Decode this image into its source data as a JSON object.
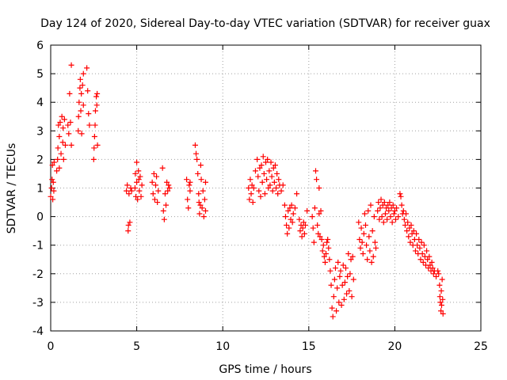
{
  "chart_data": {
    "type": "scatter",
    "title": "Day 124 of 2020, Sidereal Day-to-day VTEC variation (SDTVAR) for receiver guax",
    "xlabel": "GPS time / hours",
    "ylabel": "SDTVAR / TECUs",
    "xlim": [
      0,
      25
    ],
    "ylim": [
      -4,
      6
    ],
    "xticks": [
      "0",
      "5",
      "10",
      "15",
      "20",
      "25"
    ],
    "yticks": [
      "-4",
      "-3",
      "-2",
      "-1",
      "0",
      "1",
      "2",
      "3",
      "4",
      "5",
      "6"
    ],
    "grid": true,
    "marker": "plus",
    "color": "#ff0000",
    "points": [
      [
        0.0,
        0.7
      ],
      [
        0.05,
        1.0
      ],
      [
        0.08,
        1.3
      ],
      [
        0.1,
        1.8
      ],
      [
        0.12,
        0.6
      ],
      [
        0.15,
        1.2
      ],
      [
        0.18,
        0.9
      ],
      [
        0.2,
        1.9
      ],
      [
        0.35,
        1.6
      ],
      [
        0.4,
        2.0
      ],
      [
        0.42,
        2.4
      ],
      [
        0.45,
        3.2
      ],
      [
        0.5,
        2.8
      ],
      [
        0.5,
        1.7
      ],
      [
        0.55,
        3.3
      ],
      [
        0.6,
        2.2
      ],
      [
        0.65,
        3.5
      ],
      [
        0.7,
        2.6
      ],
      [
        0.72,
        3.1
      ],
      [
        0.75,
        2.0
      ],
      [
        0.8,
        3.4
      ],
      [
        0.85,
        2.5
      ],
      [
        1.0,
        3.2
      ],
      [
        1.05,
        2.9
      ],
      [
        1.1,
        4.3
      ],
      [
        1.15,
        3.3
      ],
      [
        1.2,
        5.3
      ],
      [
        1.2,
        2.5
      ],
      [
        1.6,
        3.0
      ],
      [
        1.62,
        3.5
      ],
      [
        1.65,
        4.0
      ],
      [
        1.7,
        4.5
      ],
      [
        1.72,
        4.8
      ],
      [
        1.75,
        3.7
      ],
      [
        1.78,
        4.3
      ],
      [
        1.8,
        2.9
      ],
      [
        1.85,
        4.6
      ],
      [
        1.9,
        3.9
      ],
      [
        1.9,
        5.0
      ],
      [
        2.1,
        5.2
      ],
      [
        2.15,
        4.4
      ],
      [
        2.2,
        3.6
      ],
      [
        2.25,
        3.2
      ],
      [
        2.5,
        2.0
      ],
      [
        2.52,
        2.4
      ],
      [
        2.55,
        2.8
      ],
      [
        2.58,
        3.2
      ],
      [
        2.6,
        3.7
      ],
      [
        2.65,
        4.2
      ],
      [
        2.68,
        3.9
      ],
      [
        2.7,
        4.3
      ],
      [
        2.72,
        2.5
      ],
      [
        4.4,
        0.9
      ],
      [
        4.45,
        1.1
      ],
      [
        4.5,
        -0.5
      ],
      [
        4.52,
        -0.3
      ],
      [
        4.55,
        0.8
      ],
      [
        4.6,
        -0.2
      ],
      [
        4.65,
        1.0
      ],
      [
        4.7,
        0.9
      ],
      [
        4.9,
        1.0
      ],
      [
        4.92,
        1.5
      ],
      [
        4.95,
        0.7
      ],
      [
        5.0,
        1.9
      ],
      [
        5.0,
        1.2
      ],
      [
        5.05,
        0.6
      ],
      [
        5.1,
        1.6
      ],
      [
        5.12,
        1.3
      ],
      [
        5.15,
        0.9
      ],
      [
        5.2,
        1.4
      ],
      [
        5.25,
        0.7
      ],
      [
        5.3,
        1.1
      ],
      [
        5.9,
        1.2
      ],
      [
        5.95,
        0.8
      ],
      [
        6.0,
        1.5
      ],
      [
        6.05,
        0.6
      ],
      [
        6.1,
        1.1
      ],
      [
        6.15,
        1.4
      ],
      [
        6.2,
        0.5
      ],
      [
        6.25,
        0.9
      ],
      [
        6.5,
        1.7
      ],
      [
        6.55,
        0.2
      ],
      [
        6.6,
        -0.1
      ],
      [
        6.65,
        0.8
      ],
      [
        6.7,
        0.4
      ],
      [
        6.75,
        1.2
      ],
      [
        6.8,
        0.9
      ],
      [
        6.85,
        1.1
      ],
      [
        6.9,
        1.0
      ],
      [
        7.9,
        1.3
      ],
      [
        7.95,
        0.6
      ],
      [
        8.0,
        0.3
      ],
      [
        8.05,
        1.1
      ],
      [
        8.1,
        0.9
      ],
      [
        8.1,
        1.2
      ],
      [
        8.4,
        2.5
      ],
      [
        8.45,
        2.2
      ],
      [
        8.5,
        2.0
      ],
      [
        8.55,
        1.5
      ],
      [
        8.6,
        0.8
      ],
      [
        8.62,
        0.5
      ],
      [
        8.65,
        0.1
      ],
      [
        8.7,
        0.4
      ],
      [
        8.72,
        1.8
      ],
      [
        8.75,
        1.3
      ],
      [
        8.8,
        0.3
      ],
      [
        8.85,
        0.9
      ],
      [
        8.9,
        0.0
      ],
      [
        8.95,
        0.6
      ],
      [
        9.0,
        1.2
      ],
      [
        9.0,
        0.2
      ],
      [
        11.5,
        1.0
      ],
      [
        11.55,
        0.6
      ],
      [
        11.6,
        1.3
      ],
      [
        11.65,
        0.8
      ],
      [
        11.7,
        1.1
      ],
      [
        11.75,
        0.5
      ],
      [
        11.8,
        1.0
      ],
      [
        11.9,
        1.6
      ],
      [
        12.0,
        2.0
      ],
      [
        12.05,
        1.4
      ],
      [
        12.1,
        0.9
      ],
      [
        12.15,
        1.7
      ],
      [
        12.2,
        0.7
      ],
      [
        12.25,
        1.8
      ],
      [
        12.3,
        1.2
      ],
      [
        12.35,
        2.1
      ],
      [
        12.4,
        1.5
      ],
      [
        12.45,
        0.8
      ],
      [
        12.5,
        1.9
      ],
      [
        12.55,
        1.3
      ],
      [
        12.6,
        2.0
      ],
      [
        12.65,
        1.0
      ],
      [
        12.7,
        1.6
      ],
      [
        12.75,
        1.1
      ],
      [
        12.8,
        1.9
      ],
      [
        12.85,
        1.4
      ],
      [
        12.9,
        0.9
      ],
      [
        12.95,
        1.7
      ],
      [
        13.0,
        1.2
      ],
      [
        13.05,
        1.8
      ],
      [
        13.1,
        1.0
      ],
      [
        13.15,
        1.5
      ],
      [
        13.2,
        0.8
      ],
      [
        13.25,
        1.3
      ],
      [
        13.3,
        1.1
      ],
      [
        13.4,
        0.9
      ],
      [
        13.5,
        1.1
      ],
      [
        13.6,
        0.4
      ],
      [
        13.65,
        0.0
      ],
      [
        13.7,
        -0.3
      ],
      [
        13.75,
        -0.6
      ],
      [
        13.8,
        0.2
      ],
      [
        13.85,
        -0.4
      ],
      [
        13.9,
        0.3
      ],
      [
        13.95,
        -0.1
      ],
      [
        14.0,
        0.4
      ],
      [
        14.05,
        -0.2
      ],
      [
        14.1,
        0.1
      ],
      [
        14.2,
        0.3
      ],
      [
        14.3,
        0.8
      ],
      [
        14.45,
        -0.1
      ],
      [
        14.5,
        -0.5
      ],
      [
        14.55,
        -0.3
      ],
      [
        14.6,
        -0.7
      ],
      [
        14.65,
        -0.4
      ],
      [
        14.7,
        -0.2
      ],
      [
        14.75,
        -0.6
      ],
      [
        14.8,
        -0.3
      ],
      [
        14.9,
        0.2
      ],
      [
        15.2,
        0.0
      ],
      [
        15.25,
        -0.4
      ],
      [
        15.3,
        -0.9
      ],
      [
        15.35,
        0.3
      ],
      [
        15.4,
        1.6
      ],
      [
        15.45,
        1.3
      ],
      [
        15.5,
        -0.3
      ],
      [
        15.55,
        -0.6
      ],
      [
        15.6,
        1.0
      ],
      [
        15.6,
        0.1
      ],
      [
        15.65,
        -0.7
      ],
      [
        15.7,
        0.2
      ],
      [
        15.75,
        -0.8
      ],
      [
        15.8,
        -1.2
      ],
      [
        15.85,
        -1.0
      ],
      [
        15.9,
        -1.4
      ],
      [
        15.95,
        -1.6
      ],
      [
        16.0,
        -1.3
      ],
      [
        16.05,
        -0.9
      ],
      [
        16.1,
        -0.8
      ],
      [
        16.15,
        -1.1
      ],
      [
        16.2,
        -1.5
      ],
      [
        16.25,
        -1.9
      ],
      [
        16.3,
        -2.4
      ],
      [
        16.35,
        -3.2
      ],
      [
        16.4,
        -3.5
      ],
      [
        16.45,
        -2.8
      ],
      [
        16.5,
        -2.2
      ],
      [
        16.55,
        -1.8
      ],
      [
        16.6,
        -3.3
      ],
      [
        16.65,
        -2.5
      ],
      [
        16.7,
        -1.6
      ],
      [
        16.75,
        -3.0
      ],
      [
        16.8,
        -2.1
      ],
      [
        16.85,
        -1.9
      ],
      [
        16.9,
        -3.1
      ],
      [
        16.95,
        -2.4
      ],
      [
        17.0,
        -1.7
      ],
      [
        17.05,
        -2.9
      ],
      [
        17.1,
        -2.3
      ],
      [
        17.15,
        -1.8
      ],
      [
        17.2,
        -2.7
      ],
      [
        17.25,
        -2.1
      ],
      [
        17.3,
        -1.3
      ],
      [
        17.35,
        -2.6
      ],
      [
        17.4,
        -2.0
      ],
      [
        17.45,
        -1.5
      ],
      [
        17.5,
        -2.8
      ],
      [
        17.55,
        -1.4
      ],
      [
        17.6,
        -2.2
      ],
      [
        17.9,
        -0.2
      ],
      [
        17.95,
        -0.8
      ],
      [
        18.0,
        -1.1
      ],
      [
        18.05,
        -0.4
      ],
      [
        18.1,
        -0.9
      ],
      [
        18.15,
        -1.3
      ],
      [
        18.2,
        -0.6
      ],
      [
        18.25,
        0.1
      ],
      [
        18.3,
        -0.3
      ],
      [
        18.35,
        -1.0
      ],
      [
        18.4,
        -1.5
      ],
      [
        18.45,
        0.2
      ],
      [
        18.5,
        -0.7
      ],
      [
        18.55,
        -1.2
      ],
      [
        18.6,
        0.4
      ],
      [
        18.65,
        -1.6
      ],
      [
        18.7,
        -0.5
      ],
      [
        18.75,
        -1.4
      ],
      [
        18.8,
        0.0
      ],
      [
        18.85,
        -0.9
      ],
      [
        18.9,
        -1.1
      ],
      [
        19.0,
        0.2
      ],
      [
        19.05,
        0.5
      ],
      [
        19.1,
        -0.1
      ],
      [
        19.15,
        0.3
      ],
      [
        19.2,
        0.6
      ],
      [
        19.25,
        0.0
      ],
      [
        19.3,
        0.4
      ],
      [
        19.35,
        -0.2
      ],
      [
        19.4,
        0.5
      ],
      [
        19.45,
        0.1
      ],
      [
        19.5,
        0.3
      ],
      [
        19.55,
        -0.1
      ],
      [
        19.6,
        0.4
      ],
      [
        19.65,
        0.2
      ],
      [
        19.7,
        0.5
      ],
      [
        19.75,
        0.0
      ],
      [
        19.8,
        0.3
      ],
      [
        19.85,
        -0.2
      ],
      [
        19.9,
        0.4
      ],
      [
        19.95,
        0.1
      ],
      [
        20.0,
        0.2
      ],
      [
        20.05,
        -0.1
      ],
      [
        20.1,
        0.3
      ],
      [
        20.2,
        0.0
      ],
      [
        20.3,
        0.8
      ],
      [
        20.35,
        0.7
      ],
      [
        20.4,
        0.4
      ],
      [
        20.45,
        0.1
      ],
      [
        20.5,
        0.2
      ],
      [
        20.55,
        -0.1
      ],
      [
        20.6,
        -0.3
      ],
      [
        20.65,
        0.1
      ],
      [
        20.7,
        -0.5
      ],
      [
        20.75,
        -0.2
      ],
      [
        20.8,
        -0.7
      ],
      [
        20.85,
        -0.4
      ],
      [
        20.9,
        -0.9
      ],
      [
        20.95,
        -0.3
      ],
      [
        21.0,
        -0.6
      ],
      [
        21.05,
        -1.0
      ],
      [
        21.1,
        -0.5
      ],
      [
        21.15,
        -0.8
      ],
      [
        21.2,
        -1.2
      ],
      [
        21.25,
        -0.6
      ],
      [
        21.3,
        -1.0
      ],
      [
        21.35,
        -1.3
      ],
      [
        21.4,
        -0.8
      ],
      [
        21.45,
        -1.1
      ],
      [
        21.5,
        -1.5
      ],
      [
        21.55,
        -0.9
      ],
      [
        21.6,
        -1.3
      ],
      [
        21.65,
        -1.6
      ],
      [
        21.7,
        -1.0
      ],
      [
        21.75,
        -1.4
      ],
      [
        21.8,
        -1.7
      ],
      [
        21.85,
        -1.2
      ],
      [
        21.9,
        -1.5
      ],
      [
        21.95,
        -1.8
      ],
      [
        22.0,
        -1.4
      ],
      [
        22.05,
        -1.7
      ],
      [
        22.1,
        -1.9
      ],
      [
        22.15,
        -1.6
      ],
      [
        22.2,
        -1.8
      ],
      [
        22.25,
        -2.0
      ],
      [
        22.3,
        -1.9
      ],
      [
        22.4,
        -2.1
      ],
      [
        22.5,
        -1.9
      ],
      [
        22.55,
        -2.0
      ],
      [
        22.6,
        -2.4
      ],
      [
        22.62,
        -2.8
      ],
      [
        22.65,
        -3.0
      ],
      [
        22.68,
        -3.3
      ],
      [
        22.7,
        -2.6
      ],
      [
        22.72,
        -3.1
      ],
      [
        22.75,
        -2.2
      ],
      [
        22.78,
        -2.9
      ],
      [
        22.8,
        -3.4
      ]
    ]
  }
}
